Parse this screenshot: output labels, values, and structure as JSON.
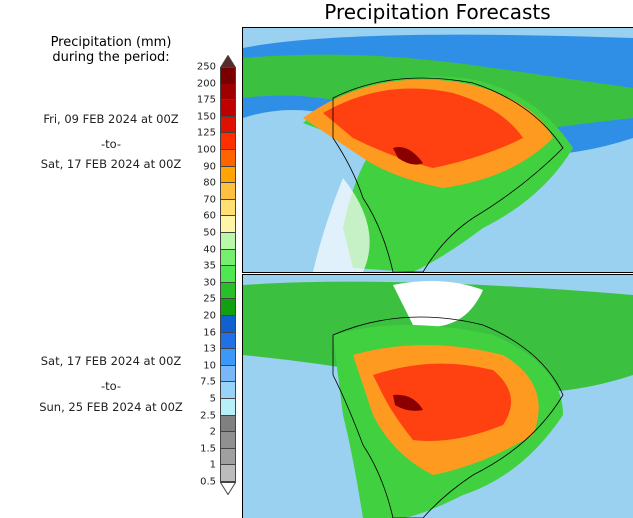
{
  "title": "Precipitation Forecasts",
  "legend_heading": [
    "Precipitation (mm)",
    "during the period:"
  ],
  "periods": [
    {
      "start": "Fri, 09 FEB 2024 at 00Z",
      "sep": "-to-",
      "end": "Sat, 17 FEB 2024 at 00Z"
    },
    {
      "start": "Sat, 17 FEB 2024 at 00Z",
      "sep": "-to-",
      "end": "Sun, 25 FEB 2024 at 00Z"
    }
  ],
  "colorbar": {
    "labels": [
      "250",
      "200",
      "175",
      "150",
      "125",
      "100",
      "90",
      "80",
      "70",
      "60",
      "50",
      "40",
      "35",
      "30",
      "25",
      "20",
      "16",
      "13",
      "10",
      "7.5",
      "5",
      "2.5",
      "2",
      "1.5",
      "1",
      "0.5"
    ],
    "colors": [
      "#7a0000",
      "#a00000",
      "#c00000",
      "#e01000",
      "#ff3000",
      "#ff6400",
      "#ffa400",
      "#ffc040",
      "#ffe070",
      "#fff5a8",
      "#b8f8a8",
      "#78ee70",
      "#50e850",
      "#28c028",
      "#10a010",
      "#1060d0",
      "#2070e8",
      "#3c98f8",
      "#78b8f8",
      "#98d4fa",
      "#b8f0f8",
      "#808080",
      "#909090",
      "#a0a0a0",
      "#bcbcbc"
    ],
    "over_color": "#5a2a2a",
    "under_color": "#ffffff"
  }
}
